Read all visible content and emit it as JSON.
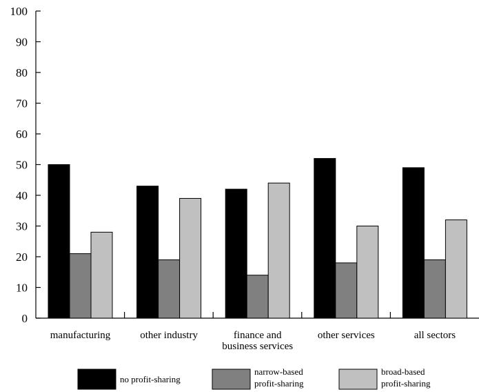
{
  "chart_data": {
    "type": "bar",
    "title": "",
    "xlabel": "",
    "ylabel": "",
    "ylim": [
      0,
      100
    ],
    "yticks": [
      0,
      10,
      20,
      30,
      40,
      50,
      60,
      70,
      80,
      90,
      100
    ],
    "grid": false,
    "legend_position": "bottom",
    "categories": [
      [
        "manufacturing"
      ],
      [
        "other industry"
      ],
      [
        "finance and",
        "business services"
      ],
      [
        "other services"
      ],
      [
        "all sectors"
      ]
    ],
    "series": [
      {
        "name": [
          "no profit-sharing"
        ],
        "color": "#000000",
        "values": [
          50,
          43,
          42,
          52,
          49
        ]
      },
      {
        "name": [
          "narrow-based",
          "profit-sharing"
        ],
        "color": "#808080",
        "values": [
          21,
          19,
          14,
          18,
          19
        ]
      },
      {
        "name": [
          "broad-based",
          "profit-sharing"
        ],
        "color": "#c0c0c0",
        "values": [
          28,
          39,
          44,
          30,
          32
        ]
      }
    ]
  }
}
